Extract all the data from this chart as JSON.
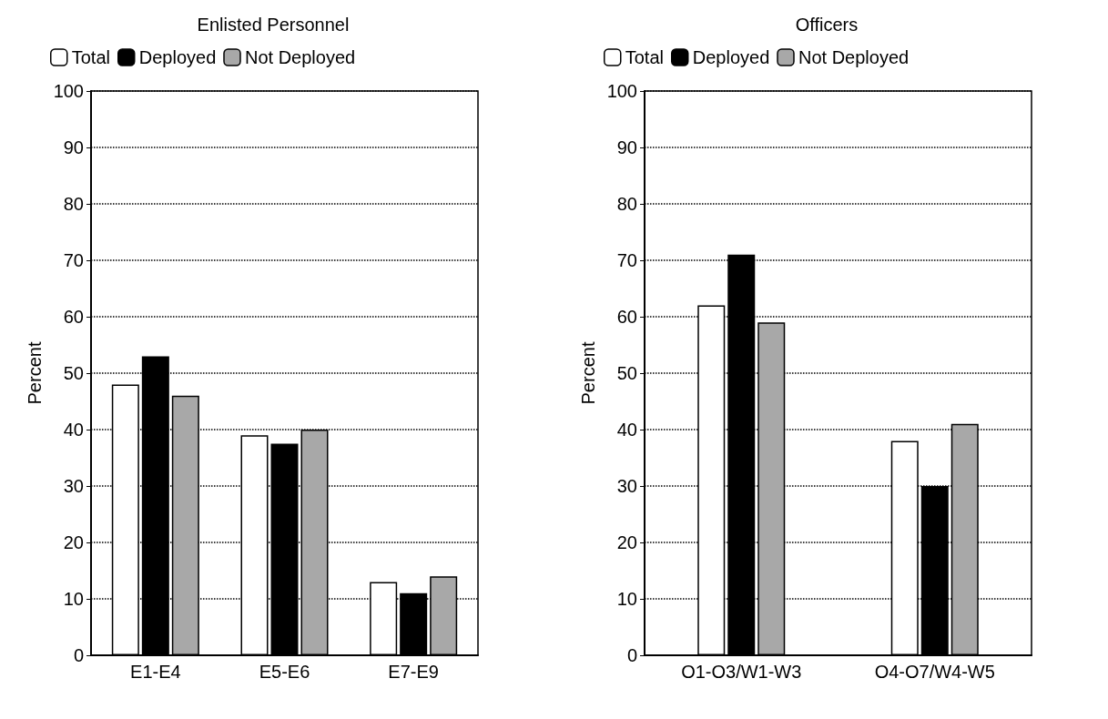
{
  "chart_data": [
    {
      "type": "bar",
      "title": "Enlisted Personnel",
      "ylabel": "Percent",
      "categories": [
        "E1-E4",
        "E5-E6",
        "E7-E9"
      ],
      "series": [
        {
          "name": "Total",
          "color": "#ffffff",
          "values": [
            48,
            39,
            13
          ]
        },
        {
          "name": "Deployed",
          "color": "#000000",
          "values": [
            53,
            37.5,
            11
          ]
        },
        {
          "name": "Not Deployed",
          "color": "#a8a8a8",
          "values": [
            46,
            40,
            14
          ]
        }
      ],
      "ylim": [
        0,
        100
      ],
      "yticks": [
        0,
        10,
        20,
        30,
        40,
        50,
        60,
        70,
        80,
        90,
        100
      ],
      "grid": "y",
      "legend": "top left",
      "line_style": "dotted"
    },
    {
      "type": "bar",
      "title": "Officers",
      "ylabel": "Percent",
      "categories": [
        "O1-O3/W1-W3",
        "O4-O7/W4-W5"
      ],
      "series": [
        {
          "name": "Total",
          "color": "#ffffff",
          "values": [
            62,
            38
          ]
        },
        {
          "name": "Deployed",
          "color": "#000000",
          "values": [
            71,
            30
          ]
        },
        {
          "name": "Not Deployed",
          "color": "#a8a8a8",
          "values": [
            59,
            41
          ]
        }
      ],
      "ylim": [
        0,
        100
      ],
      "yticks": [
        0,
        10,
        20,
        30,
        40,
        50,
        60,
        70,
        80,
        90,
        100
      ],
      "grid": "y",
      "legend": "top left",
      "line_style": "dotted"
    }
  ]
}
